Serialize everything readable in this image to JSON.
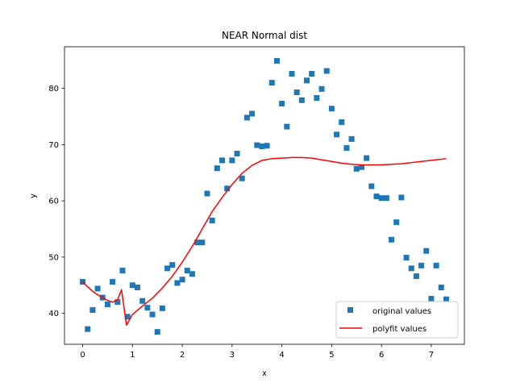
{
  "chart_data": {
    "type": "scatter",
    "title": "NEAR Normal dist",
    "xlabel": "x",
    "ylabel": "y",
    "xlim": [
      -0.365,
      7.665
    ],
    "ylim": [
      34.5,
      87.4
    ],
    "xticks": [
      0,
      1,
      2,
      3,
      4,
      5,
      6,
      7
    ],
    "yticks": [
      40,
      50,
      60,
      70,
      80
    ],
    "grid": false,
    "legend_position": "lower-right",
    "series": [
      {
        "name": "original values",
        "type": "scatter",
        "marker": "square",
        "color": "#1f77b4",
        "points": [
          [
            0.0,
            45.6
          ],
          [
            0.1,
            37.2
          ],
          [
            0.2,
            40.6
          ],
          [
            0.3,
            44.4
          ],
          [
            0.4,
            42.8
          ],
          [
            0.5,
            41.6
          ],
          [
            0.6,
            45.6
          ],
          [
            0.7,
            42.0
          ],
          [
            0.8,
            47.6
          ],
          [
            0.9,
            39.4
          ],
          [
            1.0,
            45.0
          ],
          [
            1.1,
            44.6
          ],
          [
            1.2,
            42.2
          ],
          [
            1.3,
            41.0
          ],
          [
            1.4,
            39.8
          ],
          [
            1.5,
            36.7
          ],
          [
            1.6,
            40.9
          ],
          [
            1.7,
            48.0
          ],
          [
            1.8,
            48.6
          ],
          [
            1.9,
            45.4
          ],
          [
            2.0,
            46.0
          ],
          [
            2.1,
            47.6
          ],
          [
            2.2,
            47.0
          ],
          [
            2.3,
            52.6
          ],
          [
            2.4,
            52.6
          ],
          [
            2.5,
            61.3
          ],
          [
            2.6,
            56.5
          ],
          [
            2.7,
            65.8
          ],
          [
            2.8,
            67.2
          ],
          [
            2.9,
            62.2
          ],
          [
            3.0,
            67.2
          ],
          [
            3.1,
            68.4
          ],
          [
            3.2,
            64.0
          ],
          [
            3.3,
            74.8
          ],
          [
            3.4,
            75.5
          ],
          [
            3.5,
            69.9
          ],
          [
            3.6,
            69.7
          ],
          [
            3.7,
            69.8
          ],
          [
            3.8,
            81.0
          ],
          [
            3.9,
            84.9
          ],
          [
            4.0,
            77.3
          ],
          [
            4.1,
            73.2
          ],
          [
            4.2,
            82.6
          ],
          [
            4.3,
            79.3
          ],
          [
            4.4,
            77.9
          ],
          [
            4.5,
            81.4
          ],
          [
            4.6,
            82.6
          ],
          [
            4.7,
            78.3
          ],
          [
            4.8,
            79.9
          ],
          [
            4.9,
            83.1
          ],
          [
            5.0,
            76.4
          ],
          [
            5.1,
            71.8
          ],
          [
            5.2,
            74.0
          ],
          [
            5.3,
            69.4
          ],
          [
            5.4,
            71.0
          ],
          [
            5.5,
            65.7
          ],
          [
            5.6,
            66.0
          ],
          [
            5.7,
            67.6
          ],
          [
            5.8,
            62.6
          ],
          [
            5.9,
            60.8
          ],
          [
            6.0,
            60.5
          ],
          [
            6.1,
            60.5
          ],
          [
            6.2,
            53.1
          ],
          [
            6.3,
            56.2
          ],
          [
            6.4,
            60.6
          ],
          [
            6.5,
            49.9
          ],
          [
            6.6,
            48.0
          ],
          [
            6.7,
            46.6
          ],
          [
            6.8,
            48.5
          ],
          [
            6.9,
            51.1
          ],
          [
            7.0,
            42.6
          ],
          [
            7.1,
            48.5
          ],
          [
            7.2,
            44.6
          ],
          [
            7.3,
            42.5
          ]
        ]
      },
      {
        "name": "polyfit values",
        "type": "line",
        "color": "#ff0000",
        "points": [
          [
            0.0,
            45.6
          ],
          [
            0.1,
            44.7
          ],
          [
            0.2,
            43.9
          ],
          [
            0.3,
            43.3
          ],
          [
            0.4,
            42.8
          ],
          [
            0.5,
            42.3
          ],
          [
            0.6,
            42.0
          ],
          [
            0.7,
            42.4
          ],
          [
            0.78,
            44.2
          ],
          [
            0.88,
            37.9
          ],
          [
            1.0,
            39.8
          ],
          [
            1.2,
            41.3
          ],
          [
            1.4,
            42.7
          ],
          [
            1.6,
            44.5
          ],
          [
            1.8,
            46.6
          ],
          [
            2.0,
            49.1
          ],
          [
            2.2,
            51.9
          ],
          [
            2.4,
            55.0
          ],
          [
            2.6,
            58.1
          ],
          [
            2.8,
            60.6
          ],
          [
            3.0,
            62.9
          ],
          [
            3.2,
            64.9
          ],
          [
            3.4,
            66.3
          ],
          [
            3.6,
            67.2
          ],
          [
            3.8,
            67.5
          ],
          [
            4.0,
            67.6
          ],
          [
            4.2,
            67.7
          ],
          [
            4.4,
            67.7
          ],
          [
            4.6,
            67.6
          ],
          [
            4.8,
            67.3
          ],
          [
            5.0,
            67.0
          ],
          [
            5.2,
            66.7
          ],
          [
            5.4,
            66.5
          ],
          [
            5.6,
            66.4
          ],
          [
            5.8,
            66.4
          ],
          [
            6.0,
            66.4
          ],
          [
            6.2,
            66.5
          ],
          [
            6.4,
            66.6
          ],
          [
            6.6,
            66.8
          ],
          [
            6.8,
            67.0
          ],
          [
            7.0,
            67.2
          ],
          [
            7.3,
            67.5
          ]
        ]
      }
    ]
  }
}
